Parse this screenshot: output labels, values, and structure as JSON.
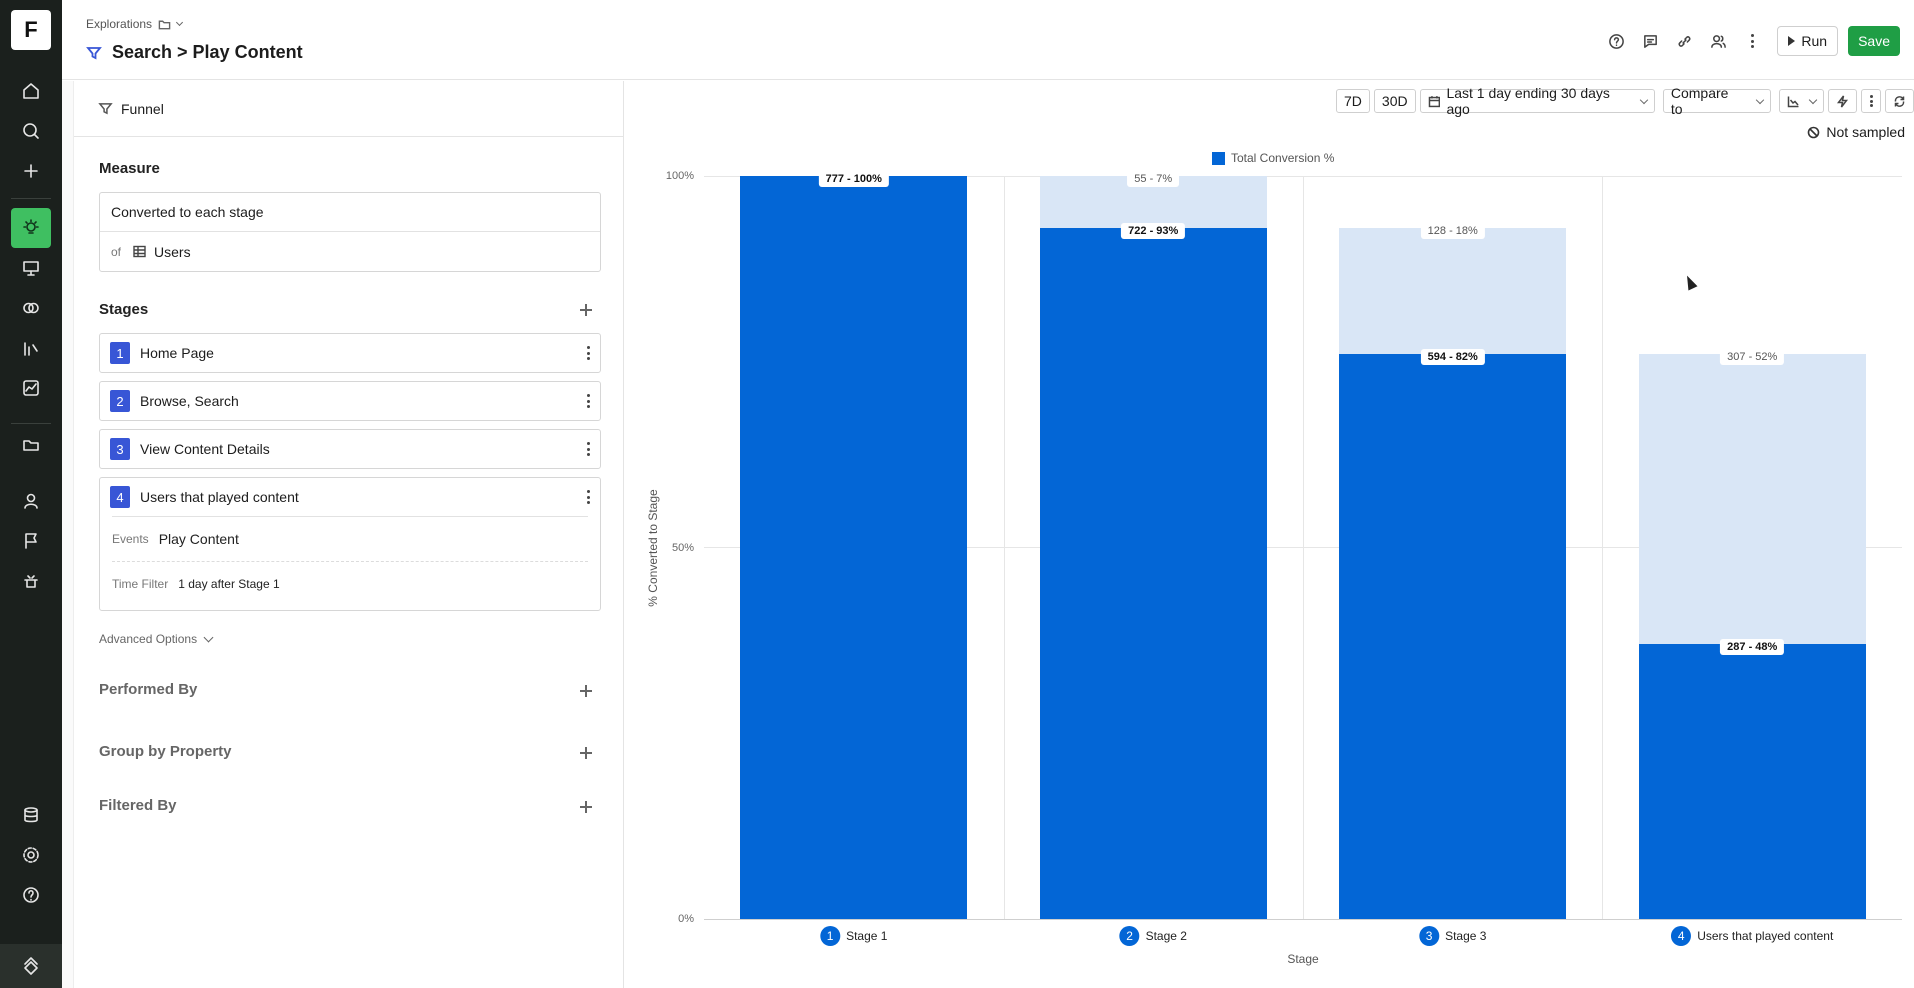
{
  "rail": {
    "logo": "F",
    "icons": [
      "home-icon",
      "search-icon",
      "plus-icon",
      "lightbulb-icon",
      "presentation-icon",
      "venn-icon",
      "metrics-icon",
      "chart-icon",
      "folder-icon",
      "user-icon",
      "flag-icon",
      "experiment-icon",
      "database-icon",
      "gear-icon",
      "help-icon",
      "brand-icon"
    ]
  },
  "header": {
    "breadcrumb": "Explorations",
    "title": "Search > Play Content",
    "run_label": "Run",
    "save_label": "Save"
  },
  "panel": {
    "tab_label": "Funnel",
    "measure": {
      "title": "Measure",
      "metric": "Converted to each stage",
      "of_label": "of",
      "entity": "Users"
    },
    "stages_title": "Stages",
    "stages": [
      {
        "num": "1",
        "label": "Home Page"
      },
      {
        "num": "2",
        "label": "Browse, Search"
      },
      {
        "num": "3",
        "label": "View Content Details"
      },
      {
        "num": "4",
        "label": "Users that played content",
        "events_label": "Events",
        "events_value": "Play Content",
        "time_filter_label": "Time Filter",
        "time_filter_value": "1 day after Stage 1"
      }
    ],
    "advanced_label": "Advanced Options",
    "performed_by": "Performed By",
    "group_by": "Group by Property",
    "filtered_by": "Filtered By"
  },
  "toolbar": {
    "btn_7d": "7D",
    "btn_30d": "30D",
    "date_range": "Last 1 day ending 30 days ago",
    "compare": "Compare to",
    "not_sampled": "Not sampled"
  },
  "colors": {
    "bar": "#0366d6",
    "ghost": "#d9e6f6",
    "accent": "#1f9e45",
    "active_nav": "#3fbf61"
  },
  "chart_data": {
    "type": "bar",
    "legend": "Total Conversion %",
    "ylabel": "% Converted to Stage",
    "xlabel": "Stage",
    "ylim": [
      0,
      100
    ],
    "y_ticks": [
      "0%",
      "50%",
      "100%"
    ],
    "categories": [
      {
        "num": "1",
        "label": "Stage 1"
      },
      {
        "num": "2",
        "label": "Stage 2"
      },
      {
        "num": "3",
        "label": "Stage 3"
      },
      {
        "num": "4",
        "label": "Users that played content"
      }
    ],
    "series": [
      {
        "name": "Total Conversion %",
        "values": [
          100,
          93,
          76,
          37
        ],
        "labels": [
          "777 - 100%",
          "722 - 93%",
          "594 - 82%",
          "287 - 48%"
        ]
      }
    ],
    "dropoff": {
      "tops": [
        null,
        100,
        93,
        76
      ],
      "labels": [
        null,
        "55 - 7%",
        "128 - 18%",
        "307 - 52%"
      ]
    }
  }
}
